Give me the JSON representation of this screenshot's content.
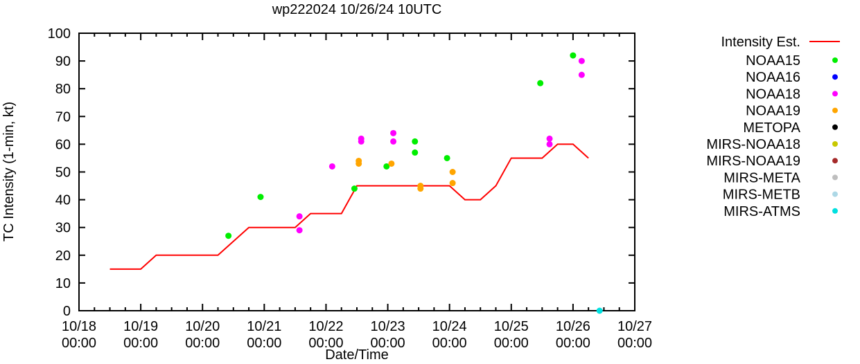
{
  "chart_data": {
    "type": "scatter",
    "title": "wp222024 10/26/24 10UTC",
    "xlabel": "Date/Time",
    "ylabel": "TC Intensity (1-min, kt)",
    "ylim": [
      0,
      100
    ],
    "xlim_days_since_10_18_00": [
      0,
      9
    ],
    "yticks": [
      "0",
      "10",
      "20",
      "30",
      "40",
      "50",
      "60",
      "70",
      "80",
      "90",
      "100"
    ],
    "xticks": [
      {
        "date": "10/18",
        "time": "00:00"
      },
      {
        "date": "10/19",
        "time": "00:00"
      },
      {
        "date": "10/20",
        "time": "00:00"
      },
      {
        "date": "10/21",
        "time": "00:00"
      },
      {
        "date": "10/22",
        "time": "00:00"
      },
      {
        "date": "10/23",
        "time": "00:00"
      },
      {
        "date": "10/24",
        "time": "00:00"
      },
      {
        "date": "10/25",
        "time": "00:00"
      },
      {
        "date": "10/26",
        "time": "00:00"
      },
      {
        "date": "10/27",
        "time": "00:00"
      }
    ],
    "legend_position": "outside-right",
    "line": {
      "name": "Intensity Est.",
      "color": "#ff0000",
      "x_days": [
        0.5,
        1.0,
        1.25,
        2.25,
        2.75,
        3.5,
        3.75,
        4.25,
        4.5,
        6.0,
        6.25,
        6.5,
        6.75,
        7.0,
        7.5,
        7.75,
        8.0,
        8.25
      ],
      "y": [
        15,
        15,
        20,
        20,
        30,
        30,
        35,
        35,
        45,
        45,
        40,
        40,
        45,
        55,
        55,
        60,
        60,
        55
      ]
    },
    "series": [
      {
        "name": "NOAA15",
        "color": "#00ee00",
        "x_days": [
          2.42,
          2.94,
          4.46,
          4.98,
          5.44,
          5.44,
          5.96,
          7.47,
          8.0
        ],
        "y": [
          27,
          41,
          44,
          52,
          61,
          57,
          55,
          82,
          92
        ]
      },
      {
        "name": "NOAA16",
        "color": "#0000ff",
        "x_days": [],
        "y": []
      },
      {
        "name": "NOAA18",
        "color": "#ff00ff",
        "x_days": [
          3.57,
          3.57,
          4.1,
          4.57,
          4.57,
          5.09,
          5.09,
          7.62,
          7.62,
          8.14,
          8.14
        ],
        "y": [
          34,
          29,
          52,
          62,
          61,
          64,
          61,
          62,
          60,
          90,
          85
        ]
      },
      {
        "name": "NOAA19",
        "color": "#ffa500",
        "x_days": [
          4.53,
          4.53,
          5.06,
          5.53,
          5.53,
          6.05,
          6.05
        ],
        "y": [
          54,
          53,
          53,
          45,
          44,
          50,
          46
        ]
      },
      {
        "name": "METOPA",
        "color": "#000000",
        "x_days": [],
        "y": []
      },
      {
        "name": "MIRS-NOAA18",
        "color": "#c8c800",
        "x_days": [],
        "y": []
      },
      {
        "name": "MIRS-NOAA19",
        "color": "#a52a2a",
        "x_days": [],
        "y": []
      },
      {
        "name": "MIRS-META",
        "color": "#bebebe",
        "x_days": [],
        "y": []
      },
      {
        "name": "MIRS-METB",
        "color": "#add8e6",
        "x_days": [],
        "y": []
      },
      {
        "name": "MIRS-ATMS",
        "color": "#00e0e0",
        "x_days": [
          8.43
        ],
        "y": [
          0
        ]
      }
    ]
  }
}
